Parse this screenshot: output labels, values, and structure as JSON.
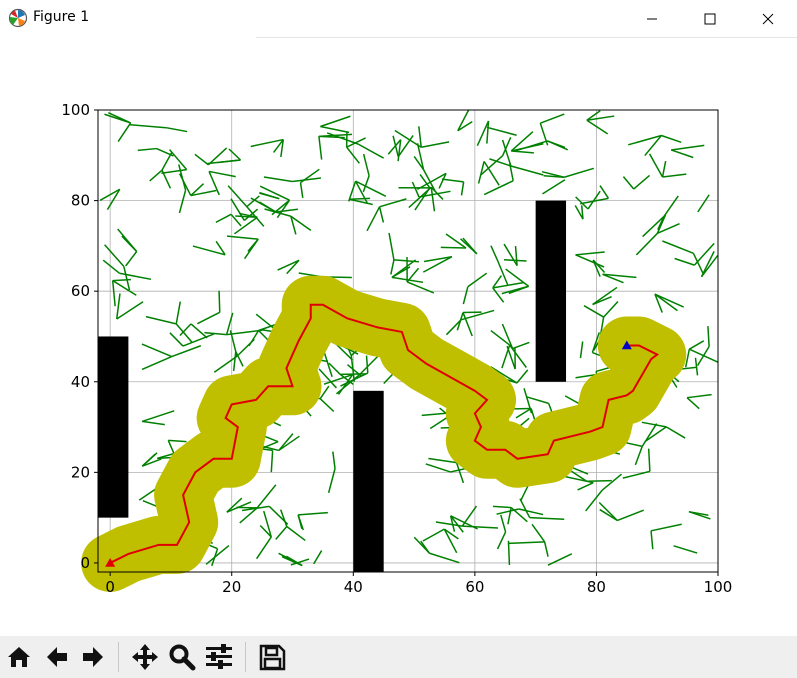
{
  "window": {
    "title": "Figure 1",
    "controls": [
      "minimize",
      "maximize",
      "close"
    ]
  },
  "toolbar": {
    "buttons": [
      {
        "name": "home",
        "icon": "home-icon"
      },
      {
        "name": "back",
        "icon": "back-arrow-icon"
      },
      {
        "name": "forward",
        "icon": "forward-arrow-icon"
      },
      {
        "name": "pan",
        "icon": "pan-move-icon"
      },
      {
        "name": "zoom",
        "icon": "zoom-magnifier-icon"
      },
      {
        "name": "subplots",
        "icon": "subplot-sliders-icon"
      },
      {
        "name": "save",
        "icon": "save-disk-icon"
      }
    ]
  },
  "chart_data": {
    "type": "scatter",
    "title": "",
    "xlabel": "",
    "ylabel": "",
    "xlim": [
      -2,
      100
    ],
    "ylim": [
      -2,
      100
    ],
    "xticks": [
      0,
      20,
      40,
      60,
      80,
      100
    ],
    "yticks": [
      0,
      20,
      40,
      60,
      80,
      100
    ],
    "grid": true,
    "colors": {
      "tree": "#008000",
      "path": "#e00000",
      "corridor": "#bfbf00",
      "obstacle": "#000000",
      "start": "#e00000",
      "goal": "#0000cc"
    },
    "obstacles": [
      {
        "x0": -2,
        "x1": 3,
        "y0": 10,
        "y1": 50
      },
      {
        "x0": 40,
        "x1": 45,
        "y0": -2,
        "y1": 38
      },
      {
        "x0": 70,
        "x1": 75,
        "y0": 40,
        "y1": 80
      }
    ],
    "start": {
      "x": 0,
      "y": 0,
      "marker": "triangle"
    },
    "goal": {
      "x": 85,
      "y": 48,
      "marker": "triangle"
    },
    "path": [
      [
        0,
        0
      ],
      [
        3,
        2
      ],
      [
        8,
        4
      ],
      [
        11,
        4
      ],
      [
        13,
        9
      ],
      [
        12,
        15
      ],
      [
        14,
        20
      ],
      [
        17,
        23
      ],
      [
        20,
        23
      ],
      [
        21,
        30
      ],
      [
        19,
        32
      ],
      [
        20,
        35
      ],
      [
        24,
        36
      ],
      [
        26,
        39
      ],
      [
        30,
        39
      ],
      [
        29,
        43
      ],
      [
        31,
        49
      ],
      [
        33,
        54
      ],
      [
        33,
        57
      ],
      [
        35,
        57
      ],
      [
        39,
        54
      ],
      [
        44,
        52
      ],
      [
        48,
        51
      ],
      [
        49,
        47
      ],
      [
        52,
        44
      ],
      [
        56,
        41
      ],
      [
        60,
        38
      ],
      [
        62,
        36
      ],
      [
        60,
        33
      ],
      [
        61,
        30
      ],
      [
        60,
        27
      ],
      [
        62,
        25
      ],
      [
        65,
        25
      ],
      [
        67,
        23
      ],
      [
        72,
        24
      ],
      [
        73,
        27
      ],
      [
        79,
        29
      ],
      [
        81,
        30
      ],
      [
        82,
        36
      ],
      [
        85,
        37
      ],
      [
        86,
        38
      ],
      [
        89,
        45
      ],
      [
        90,
        46
      ],
      [
        87,
        48
      ],
      [
        85,
        48
      ]
    ]
  }
}
